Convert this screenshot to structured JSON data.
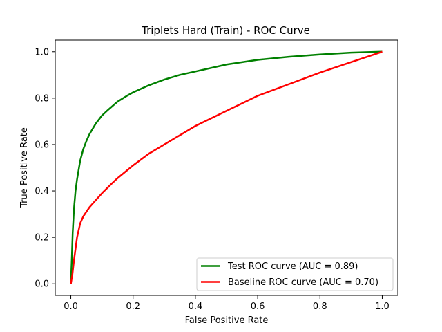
{
  "chart_data": {
    "type": "line",
    "title": "Triplets Hard (Train) - ROC Curve",
    "xlabel": "False Positive Rate",
    "ylabel": "True Positive Rate",
    "xlim": [
      -0.05,
      1.05
    ],
    "ylim": [
      -0.05,
      1.05
    ],
    "xticks": [
      "0.0",
      "0.2",
      "0.4",
      "0.6",
      "0.8",
      "1.0"
    ],
    "yticks": [
      "0.0",
      "0.2",
      "0.4",
      "0.6",
      "0.8",
      "1.0"
    ],
    "grid": false,
    "legend_position": "lower-right",
    "series": [
      {
        "name": "Test ROC curve (AUC = 0.89)",
        "color": "#008000",
        "x": [
          0.0,
          0.003,
          0.006,
          0.01,
          0.015,
          0.02,
          0.03,
          0.04,
          0.05,
          0.06,
          0.08,
          0.1,
          0.12,
          0.15,
          0.18,
          0.2,
          0.25,
          0.3,
          0.35,
          0.4,
          0.5,
          0.6,
          0.7,
          0.8,
          0.9,
          1.0
        ],
        "y": [
          0.0,
          0.1,
          0.22,
          0.32,
          0.4,
          0.45,
          0.53,
          0.58,
          0.615,
          0.645,
          0.69,
          0.725,
          0.75,
          0.785,
          0.81,
          0.825,
          0.855,
          0.88,
          0.9,
          0.915,
          0.945,
          0.965,
          0.978,
          0.988,
          0.996,
          1.0
        ]
      },
      {
        "name": "Baseline ROC curve (AUC = 0.70)",
        "color": "#ff0000",
        "x": [
          0.0,
          0.005,
          0.01,
          0.015,
          0.02,
          0.025,
          0.03,
          0.04,
          0.05,
          0.06,
          0.08,
          0.1,
          0.13,
          0.15,
          0.2,
          0.25,
          0.3,
          0.35,
          0.4,
          0.5,
          0.6,
          0.7,
          0.8,
          0.9,
          1.0
        ],
        "y": [
          0.0,
          0.04,
          0.1,
          0.15,
          0.2,
          0.23,
          0.26,
          0.29,
          0.31,
          0.33,
          0.36,
          0.39,
          0.43,
          0.455,
          0.51,
          0.56,
          0.6,
          0.64,
          0.68,
          0.745,
          0.81,
          0.86,
          0.91,
          0.955,
          1.0
        ]
      }
    ]
  }
}
